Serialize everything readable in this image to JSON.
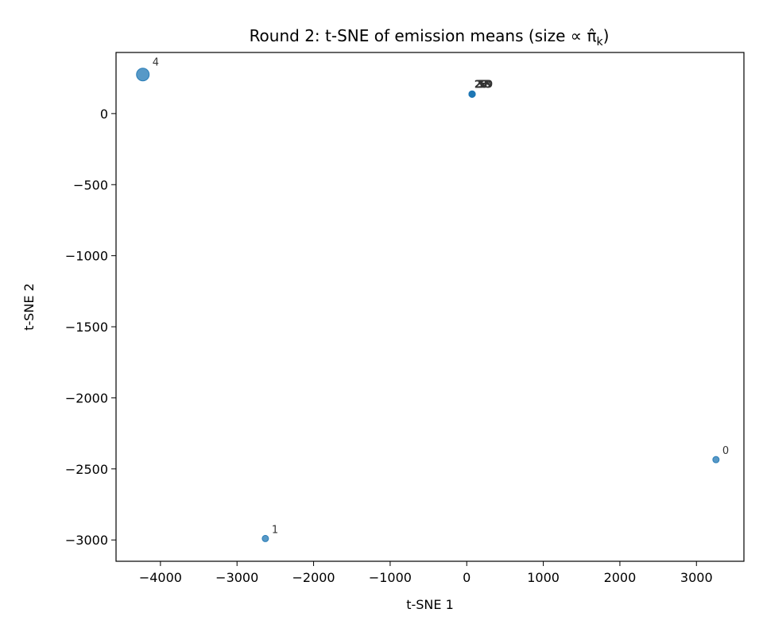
{
  "chart_data": {
    "type": "scatter",
    "title": "Round 2: t-SNE of emission means (size ∝ π̂",
    "title_sub": "k",
    "title_close": ")",
    "xlabel": "t-SNE 1",
    "ylabel": "t-SNE 2",
    "xlim": [
      -4580,
      3620
    ],
    "ylim": [
      -3150,
      430
    ],
    "xticks": [
      -4000,
      -3000,
      -2000,
      -1000,
      0,
      1000,
      2000,
      3000
    ],
    "yticks": [
      0,
      -500,
      -1000,
      -1500,
      -2000,
      -2500,
      -3000
    ],
    "grid": false,
    "point_color": "#1f77b4",
    "points": [
      {
        "label": "4",
        "x": -4230,
        "y": 275,
        "size": 8
      },
      {
        "label": "0",
        "x": 3255,
        "y": -2435,
        "size": 4
      },
      {
        "label": "1",
        "x": -2630,
        "y": -2990,
        "size": 4
      },
      {
        "label": "2",
        "x": 70,
        "y": 137,
        "size": 4
      },
      {
        "label": "3",
        "x": 70,
        "y": 137,
        "size": 4
      },
      {
        "label": "5",
        "x": 70,
        "y": 137,
        "size": 4
      },
      {
        "label": "6",
        "x": 70,
        "y": 137,
        "size": 4
      },
      {
        "label": "7",
        "x": 70,
        "y": 137,
        "size": 4
      },
      {
        "label": "8",
        "x": 70,
        "y": 137,
        "size": 4
      },
      {
        "label": "9",
        "x": 70,
        "y": 137,
        "size": 4
      }
    ],
    "cluster_labels": [
      {
        "label": "2",
        "x": 140,
        "y": 210
      },
      {
        "label": "3",
        "x": 165,
        "y": 210
      },
      {
        "label": "5",
        "x": 190,
        "y": 210
      },
      {
        "label": "6",
        "x": 215,
        "y": 210
      },
      {
        "label": "7",
        "x": 240,
        "y": 210
      },
      {
        "label": "8",
        "x": 265,
        "y": 210
      },
      {
        "label": "9",
        "x": 290,
        "y": 210
      }
    ]
  }
}
